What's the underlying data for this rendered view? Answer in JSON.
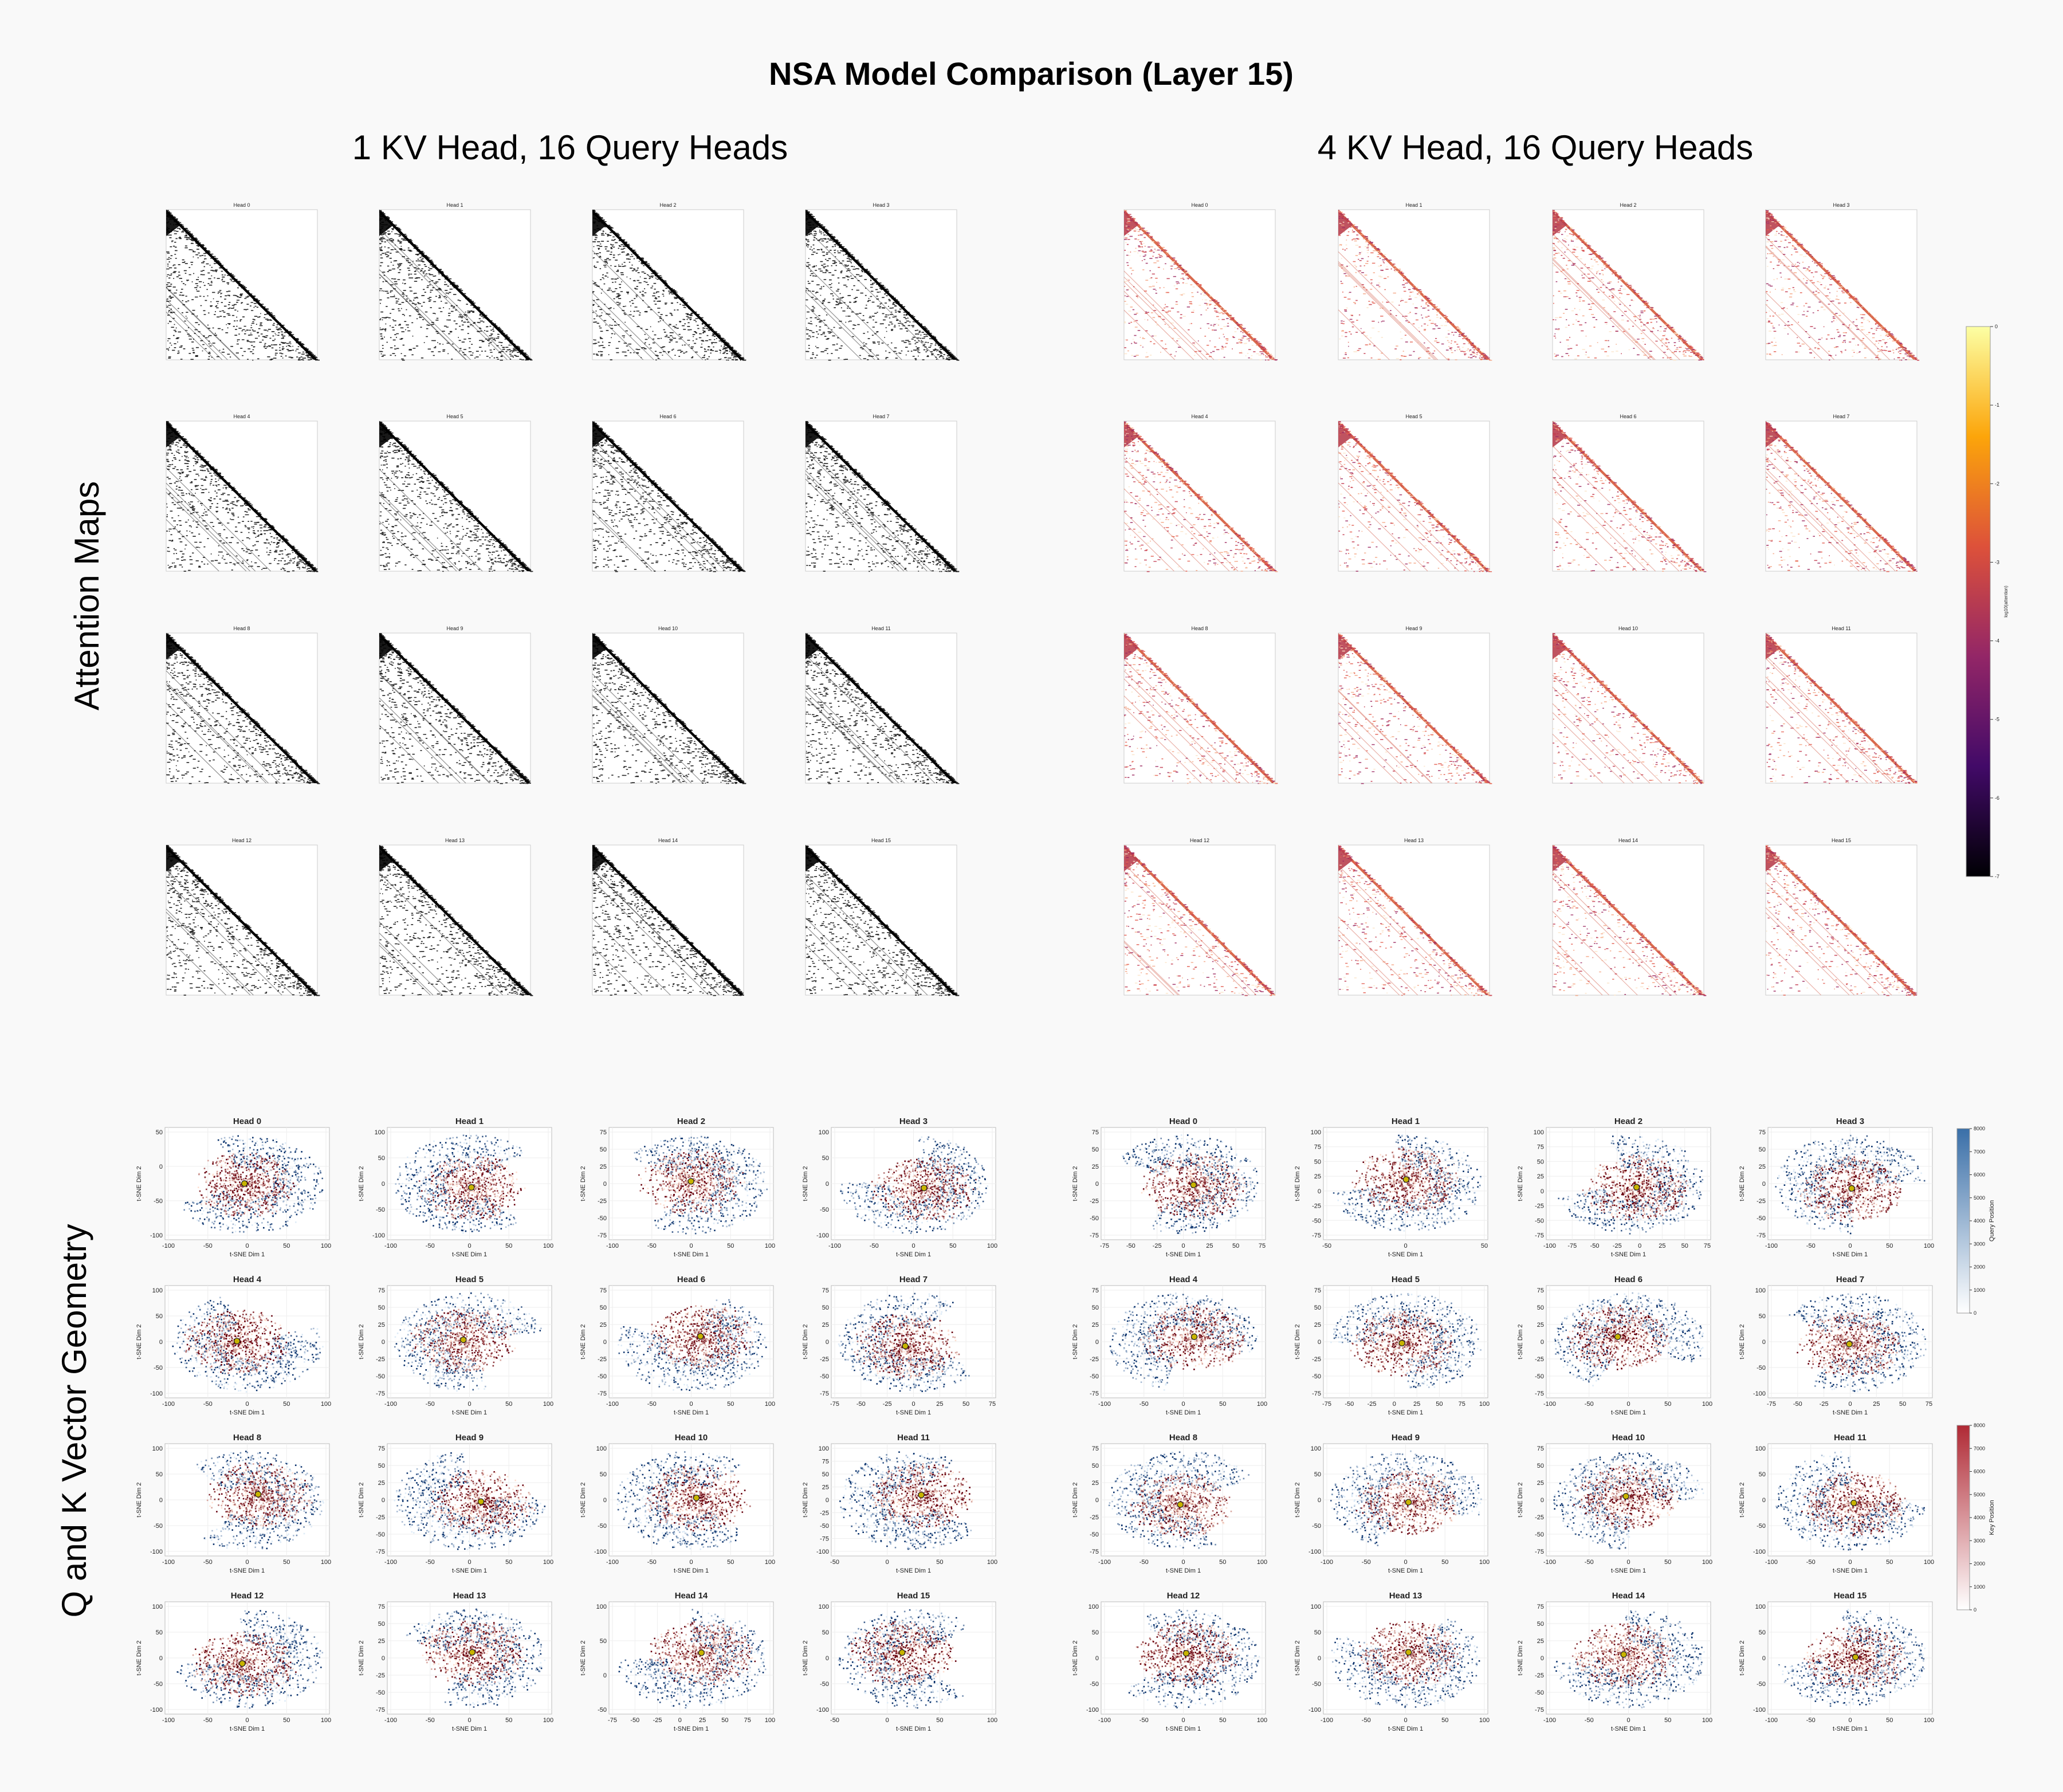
{
  "title": "NSA Model Comparison (Layer 15)",
  "columns": [
    {
      "heading": "1 KV Head, 16 Query Heads",
      "kv_heads": 1
    },
    {
      "heading": "4 KV Head, 16 Query Heads",
      "kv_heads": 4
    }
  ],
  "rows": [
    {
      "label": "Attention Maps"
    },
    {
      "label": "Q and K Vector Geometry"
    }
  ],
  "chart_data": {
    "type": "heatmap",
    "head_titles": [
      "Head 0",
      "Head 1",
      "Head 2",
      "Head 3",
      "Head 4",
      "Head 5",
      "Head 6",
      "Head 7",
      "Head 8",
      "Head 9",
      "Head 10",
      "Head 11",
      "Head 12",
      "Head 13",
      "Head 14",
      "Head 15"
    ],
    "attention_maps": {
      "pattern": "causal lower-triangular (upper-left to lower-right diagonal)",
      "left_colors": {
        "high": "#000000",
        "low": "#ffffff"
      },
      "right_colormap": "inferno",
      "colorbar": {
        "ticks": [
          "0",
          "-1",
          "-2",
          "-3",
          "-4",
          "-5",
          "-6",
          "-7"
        ],
        "label": "log10(attention)",
        "stops": [
          "#fcffa4",
          "#fca50a",
          "#dd513a",
          "#932667",
          "#420a68",
          "#000004"
        ]
      }
    },
    "tsne": {
      "type": "scatter",
      "xlabel": "t-SNE Dim 1",
      "ylabel": "t-SNE Dim 2",
      "query_colorbar": {
        "label": "Query Position",
        "ticks": [
          "0",
          "1000",
          "2000",
          "3000",
          "4000",
          "5000",
          "6000",
          "7000",
          "8000"
        ],
        "range": [
          0,
          8000
        ],
        "colormap": "Blues"
      },
      "key_colorbar": {
        "label": "Key Position",
        "ticks": [
          "0",
          "1000",
          "2000",
          "3000",
          "4000",
          "5000",
          "6000",
          "7000",
          "8000"
        ],
        "range": [
          0,
          8000
        ],
        "colormap": "Reds"
      },
      "colors": {
        "query_dark": "#08306b",
        "query_light": "#deebf7",
        "key_dark": "#67000d",
        "key_light": "#fee0d2",
        "center_marker": "#c8b400"
      },
      "left_panels": [
        {
          "xticks": [
            "-100",
            "-50",
            "0",
            "50",
            "100"
          ],
          "yticks": [
            "50",
            "0",
            "-50",
            "-100"
          ]
        },
        {
          "xticks": [
            "-100",
            "-50",
            "0",
            "50",
            "100"
          ],
          "yticks": [
            "100",
            "50",
            "0",
            "-50",
            "-100"
          ]
        },
        {
          "xticks": [
            "-100",
            "-50",
            "0",
            "50",
            "100"
          ],
          "yticks": [
            "75",
            "50",
            "25",
            "0",
            "-25",
            "-50",
            "-75"
          ]
        },
        {
          "xticks": [
            "-100",
            "-50",
            "0",
            "50",
            "100"
          ],
          "yticks": [
            "100",
            "50",
            "0",
            "-50",
            "-100"
          ]
        },
        {
          "xticks": [
            "-100",
            "-50",
            "0",
            "50",
            "100"
          ],
          "yticks": [
            "100",
            "50",
            "0",
            "-50",
            "-100"
          ]
        },
        {
          "xticks": [
            "-100",
            "-50",
            "0",
            "50",
            "100"
          ],
          "yticks": [
            "75",
            "50",
            "25",
            "0",
            "-25",
            "-50",
            "-75"
          ]
        },
        {
          "xticks": [
            "-100",
            "-50",
            "0",
            "50",
            "100"
          ],
          "yticks": [
            "75",
            "50",
            "25",
            "0",
            "-25",
            "-50",
            "-75"
          ]
        },
        {
          "xticks": [
            "-75",
            "-50",
            "-25",
            "0",
            "25",
            "50",
            "75"
          ],
          "yticks": [
            "75",
            "50",
            "25",
            "0",
            "-25",
            "-50",
            "-75"
          ]
        },
        {
          "xticks": [
            "-100",
            "-50",
            "0",
            "50",
            "100"
          ],
          "yticks": [
            "100",
            "50",
            "0",
            "-50",
            "-100"
          ]
        },
        {
          "xticks": [
            "-100",
            "-50",
            "0",
            "50",
            "100"
          ],
          "yticks": [
            "75",
            "50",
            "25",
            "0",
            "-25",
            "-50",
            "-75"
          ]
        },
        {
          "xticks": [
            "-100",
            "-50",
            "0",
            "50",
            "100"
          ],
          "yticks": [
            "100",
            "50",
            "0",
            "-50",
            "-100"
          ]
        },
        {
          "xticks": [
            "-50",
            "0",
            "50",
            "100"
          ],
          "yticks": [
            "100",
            "75",
            "50",
            "25",
            "0",
            "-25",
            "-50",
            "-75",
            "-100"
          ]
        },
        {
          "xticks": [
            "-100",
            "-50",
            "0",
            "50",
            "100"
          ],
          "yticks": [
            "100",
            "50",
            "0",
            "-50",
            "-100"
          ]
        },
        {
          "xticks": [
            "-100",
            "-50",
            "0",
            "50",
            "100"
          ],
          "yticks": [
            "75",
            "50",
            "25",
            "0",
            "-25",
            "-50",
            "-75"
          ]
        },
        {
          "xticks": [
            "-75",
            "-50",
            "-25",
            "0",
            "25",
            "50",
            "75",
            "100"
          ],
          "yticks": [
            "100",
            "50",
            "0",
            "-50"
          ]
        },
        {
          "xticks": [
            "-50",
            "0",
            "50",
            "100"
          ],
          "yticks": [
            "100",
            "50",
            "0",
            "-50",
            "-100"
          ]
        }
      ],
      "right_panels": [
        {
          "xticks": [
            "-75",
            "-50",
            "-25",
            "0",
            "25",
            "50",
            "75"
          ],
          "yticks": [
            "75",
            "50",
            "25",
            "0",
            "-25",
            "-50",
            "-75"
          ]
        },
        {
          "xticks": [
            "-50",
            "0",
            "50"
          ],
          "yticks": [
            "100",
            "75",
            "50",
            "25",
            "0",
            "-25",
            "-50",
            "-75"
          ]
        },
        {
          "xticks": [
            "-100",
            "-75",
            "-50",
            "-25",
            "0",
            "25",
            "50",
            "75"
          ],
          "yticks": [
            "100",
            "75",
            "50",
            "25",
            "0",
            "-25",
            "-50",
            "-75"
          ]
        },
        {
          "xticks": [
            "-100",
            "-50",
            "0",
            "50",
            "100"
          ],
          "yticks": [
            "75",
            "50",
            "25",
            "0",
            "-25",
            "-50",
            "-75"
          ]
        },
        {
          "xticks": [
            "-100",
            "-50",
            "0",
            "50",
            "100"
          ],
          "yticks": [
            "75",
            "50",
            "25",
            "0",
            "-25",
            "-50",
            "-75"
          ]
        },
        {
          "xticks": [
            "-75",
            "-50",
            "-25",
            "0",
            "25",
            "50",
            "75",
            "100"
          ],
          "yticks": [
            "75",
            "50",
            "25",
            "0",
            "-25",
            "-50",
            "-75"
          ]
        },
        {
          "xticks": [
            "-100",
            "-50",
            "0",
            "50",
            "100"
          ],
          "yticks": [
            "75",
            "50",
            "25",
            "0",
            "-25",
            "-50",
            "-75"
          ]
        },
        {
          "xticks": [
            "-75",
            "-50",
            "-25",
            "0",
            "25",
            "50",
            "75"
          ],
          "yticks": [
            "100",
            "50",
            "0",
            "-50",
            "-100"
          ]
        },
        {
          "xticks": [
            "-100",
            "-50",
            "0",
            "50",
            "100"
          ],
          "yticks": [
            "75",
            "50",
            "25",
            "0",
            "-25",
            "-50",
            "-75"
          ]
        },
        {
          "xticks": [
            "-100",
            "-50",
            "0",
            "50",
            "100"
          ],
          "yticks": [
            "100",
            "50",
            "0",
            "-50",
            "-100"
          ]
        },
        {
          "xticks": [
            "-100",
            "-50",
            "0",
            "50",
            "100"
          ],
          "yticks": [
            "75",
            "50",
            "25",
            "0",
            "-25",
            "-50",
            "-75"
          ]
        },
        {
          "xticks": [
            "-100",
            "-50",
            "0",
            "50",
            "100"
          ],
          "yticks": [
            "100",
            "50",
            "0",
            "-50",
            "-100"
          ]
        },
        {
          "xticks": [
            "-100",
            "-50",
            "0",
            "50",
            "100"
          ],
          "yticks": [
            "100",
            "50",
            "0",
            "-50",
            "-100"
          ]
        },
        {
          "xticks": [
            "-100",
            "-50",
            "0",
            "50",
            "100"
          ],
          "yticks": [
            "100",
            "50",
            "0",
            "-50",
            "-100"
          ]
        },
        {
          "xticks": [
            "-100",
            "-50",
            "0",
            "50",
            "100"
          ],
          "yticks": [
            "75",
            "50",
            "25",
            "0",
            "-25",
            "-50",
            "-75"
          ]
        },
        {
          "xticks": [
            "-100",
            "-50",
            "0",
            "50",
            "100"
          ],
          "yticks": [
            "100",
            "50",
            "0",
            "-50",
            "-100"
          ]
        }
      ]
    }
  }
}
